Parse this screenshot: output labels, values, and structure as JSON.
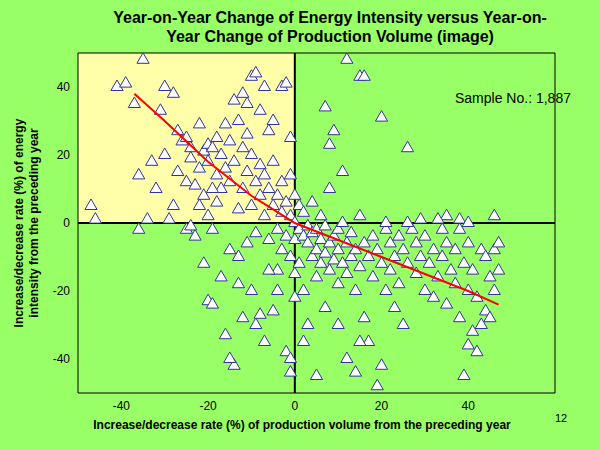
{
  "chart_data": {
    "type": "scatter",
    "title": [
      "Year-on-Year Change of Energy Intensity versus Year-on-",
      "Year Change of Production Volume (image)"
    ],
    "x_label": "Increase/decrease rate (%) of production volume from the preceding year",
    "y_label": [
      "Increase/decrease rate (%) of energy",
      "intensity from the preceding year"
    ],
    "xlim": [
      -50,
      60
    ],
    "ylim": [
      -50,
      50
    ],
    "xticks": [
      -40,
      -20,
      0,
      20,
      40
    ],
    "yticks": [
      -40,
      -20,
      0,
      20,
      40
    ],
    "grid": false,
    "reference_lines": {
      "x": 0,
      "y": 0
    },
    "shaded_region": {
      "xlim": [
        -50,
        0
      ],
      "ylim": [
        0,
        50
      ],
      "color": "#ffffaa"
    },
    "annotations": [
      {
        "text": "Sample No.: 1,887"
      },
      {
        "text": "12"
      }
    ],
    "series": [
      {
        "type": "scatter",
        "marker": "triangle",
        "color": "#333399",
        "x": [
          -47,
          -46,
          -41,
          -37,
          -35,
          -30,
          -28,
          -31,
          -27,
          -26,
          -25,
          -24,
          -27,
          -25,
          -28,
          -29,
          -30,
          -33,
          -36,
          -39,
          -22,
          -21,
          -20,
          -20,
          -19,
          -18,
          -18,
          -17,
          -16,
          -15,
          -14,
          -13,
          -12,
          -11,
          -10,
          -9,
          -8,
          -7,
          -3,
          -2,
          -1,
          -20,
          -19,
          -17,
          -16,
          -14,
          -15,
          -13,
          -12,
          -10,
          -9,
          -8,
          -7,
          -5,
          -4,
          -2,
          -1,
          -1,
          -23,
          -25,
          -22,
          -21,
          -20,
          -19,
          -18,
          -17,
          -16,
          -15,
          -14,
          -13,
          -12,
          -12,
          -11,
          -10,
          -10,
          -9,
          -9,
          -8,
          -8,
          -7,
          -7,
          -6,
          -6,
          -5,
          -5,
          -4,
          -4,
          -3,
          -3,
          -3,
          -2,
          -2,
          -1,
          -1,
          -1,
          0,
          0,
          0,
          0,
          0,
          1,
          1,
          1,
          2,
          2,
          2,
          3,
          3,
          3,
          4,
          4,
          4,
          5,
          5,
          5,
          6,
          6,
          6,
          7,
          7,
          7,
          8,
          8,
          8,
          9,
          9,
          10,
          10,
          10,
          11,
          11,
          12,
          12,
          12,
          13,
          13,
          14,
          14,
          15,
          15,
          16,
          16,
          17,
          17,
          18,
          18,
          19,
          19,
          20,
          20,
          21,
          21,
          22,
          22,
          23,
          24,
          24,
          25,
          26,
          26,
          27,
          28,
          28,
          29,
          30,
          30,
          31,
          32,
          32,
          33,
          34,
          34,
          35,
          35,
          36,
          37,
          37,
          38,
          38,
          39,
          39,
          40,
          40,
          40,
          41,
          41,
          42,
          42,
          43,
          43,
          44,
          44,
          45,
          45,
          46,
          46,
          46,
          47,
          47,
          35,
          38,
          40,
          33,
          26,
          21,
          29,
          12,
          15,
          16,
          7,
          8,
          9,
          11,
          14,
          15,
          10,
          5,
          2,
          23,
          25,
          20,
          -34,
          -32,
          -36,
          -19,
          -15,
          -13,
          -11,
          -6,
          -4,
          -22,
          -24,
          -23,
          -11,
          -6,
          -5,
          -24,
          -21
        ],
        "values": [
          5,
          1,
          40,
          35,
          48,
          40,
          38,
          33,
          27,
          24,
          25,
          22,
          15,
          12,
          5,
          1,
          20,
          18,
          14,
          41,
          29,
          21,
          23,
          18,
          22,
          25,
          14,
          10,
          29,
          24,
          36,
          30,
          38,
          35,
          43,
          44,
          33,
          40,
          40,
          41,
          25,
          -23,
          -24,
          -16,
          -33,
          -42,
          -40,
          -18,
          -28,
          -20,
          -30,
          -27,
          -35,
          -26,
          -14,
          -38,
          -44,
          -40,
          -4,
          -2,
          5,
          8,
          2,
          10,
          6,
          20,
          16,
          12,
          18,
          4,
          22,
          10,
          15,
          5,
          20,
          12,
          -3,
          8,
          17,
          2,
          14,
          10,
          -5,
          5,
          18,
          8,
          -2,
          3,
          12,
          -8,
          6,
          -4,
          2,
          -10,
          14,
          0,
          -5,
          8,
          -15,
          -22,
          -2,
          5,
          -12,
          -4,
          3,
          -20,
          -6,
          -1,
          -30,
          -3,
          -10,
          6,
          -8,
          -2,
          -16,
          -5,
          -12,
          2,
          -9,
          -1,
          -25,
          -6,
          -14,
          10,
          -4,
          -11,
          -8,
          -2,
          -18,
          -12,
          0,
          -6,
          -15,
          -40,
          -10,
          -3,
          -20,
          -8,
          -13,
          2,
          -6,
          -28,
          -10,
          -35,
          -16,
          -4,
          -8,
          -48,
          -12,
          31,
          -20,
          -2,
          -6,
          -14,
          -10,
          -4,
          -18,
          -8,
          22,
          -12,
          -2,
          -15,
          -6,
          -10,
          -20,
          -4,
          -12,
          -8,
          -22,
          -16,
          -2,
          -10,
          -6,
          -24,
          -14,
          -8,
          -18,
          -2,
          -28,
          -12,
          -45,
          -20,
          -36,
          -6,
          -32,
          -14,
          -22,
          -38,
          -30,
          -8,
          -10,
          -26,
          -16,
          -28,
          -8,
          -20,
          2,
          -6,
          -14,
          2,
          1,
          0,
          1,
          0,
          0,
          1,
          48,
          43,
          43,
          34,
          23,
          27,
          15,
          -44,
          -35,
          -30,
          -45,
          -35,
          -25,
          -30,
          -42,
          1,
          10,
          -2,
          -2,
          -8,
          -10,
          -6,
          -14,
          -20,
          16,
          19,
          11,
          26,
          27,
          30,
          -1,
          -12
        ]
      },
      {
        "type": "line",
        "color": "#ff0000",
        "x": [
          -37,
          -30,
          -20,
          -10,
          -5,
          0,
          10,
          20,
          30,
          40,
          47
        ],
        "values": [
          38,
          30,
          18,
          8,
          4,
          0,
          -5,
          -10,
          -15,
          -20,
          -24
        ]
      }
    ]
  }
}
